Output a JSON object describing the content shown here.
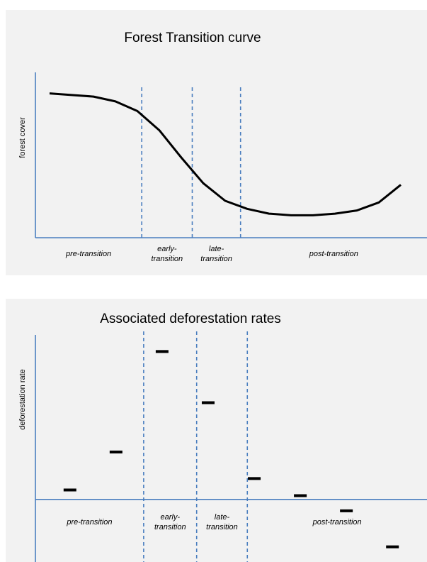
{
  "colors": {
    "panel_background": "#f2f2f2",
    "axis": "#4a7ebf",
    "divider": "#4a7ebf",
    "series": "#000000"
  },
  "chart_data": [
    {
      "type": "line",
      "title": "Forest Transition curve",
      "xlabel": "",
      "ylabel": "forest cover",
      "grid": false,
      "legend": "none",
      "x": [
        0,
        1,
        2,
        3,
        4,
        5,
        6,
        7,
        8,
        9,
        10,
        11,
        12,
        13,
        14,
        15,
        16
      ],
      "series": [
        {
          "values": [
            0.9,
            0.89,
            0.88,
            0.85,
            0.79,
            0.67,
            0.5,
            0.34,
            0.23,
            0.18,
            0.15,
            0.14,
            0.14,
            0.15,
            0.17,
            0.22,
            0.33
          ]
        }
      ],
      "ylim": [
        0,
        1
      ],
      "phase_boundaries": [
        4.2,
        6.5,
        8.7
      ],
      "phases": [
        {
          "label_lines": [
            "pre-transition"
          ]
        },
        {
          "label_lines": [
            "early-",
            "transition"
          ]
        },
        {
          "label_lines": [
            "late-",
            "transition"
          ]
        },
        {
          "label_lines": [
            "post-transition"
          ]
        }
      ]
    },
    {
      "type": "scatter",
      "title": "Associated deforestation rates",
      "xlabel": "",
      "ylabel": "deforestation rate",
      "grid": false,
      "legend": "none",
      "x": [
        1.5,
        3.5,
        5.5,
        7.5,
        9.5,
        11.5,
        13.5,
        15.5
      ],
      "values": [
        0.05,
        0.25,
        0.78,
        0.51,
        0.11,
        0.02,
        -0.06,
        -0.25
      ],
      "ylim": [
        -0.33,
        0.86
      ],
      "phase_boundaries": [
        4.7,
        7.0,
        9.2
      ],
      "phases": [
        {
          "label_lines": [
            "pre-transition"
          ]
        },
        {
          "label_lines": [
            "early-",
            "transition"
          ]
        },
        {
          "label_lines": [
            "late-",
            "transition"
          ]
        },
        {
          "label_lines": [
            "post-transition"
          ]
        }
      ]
    }
  ]
}
